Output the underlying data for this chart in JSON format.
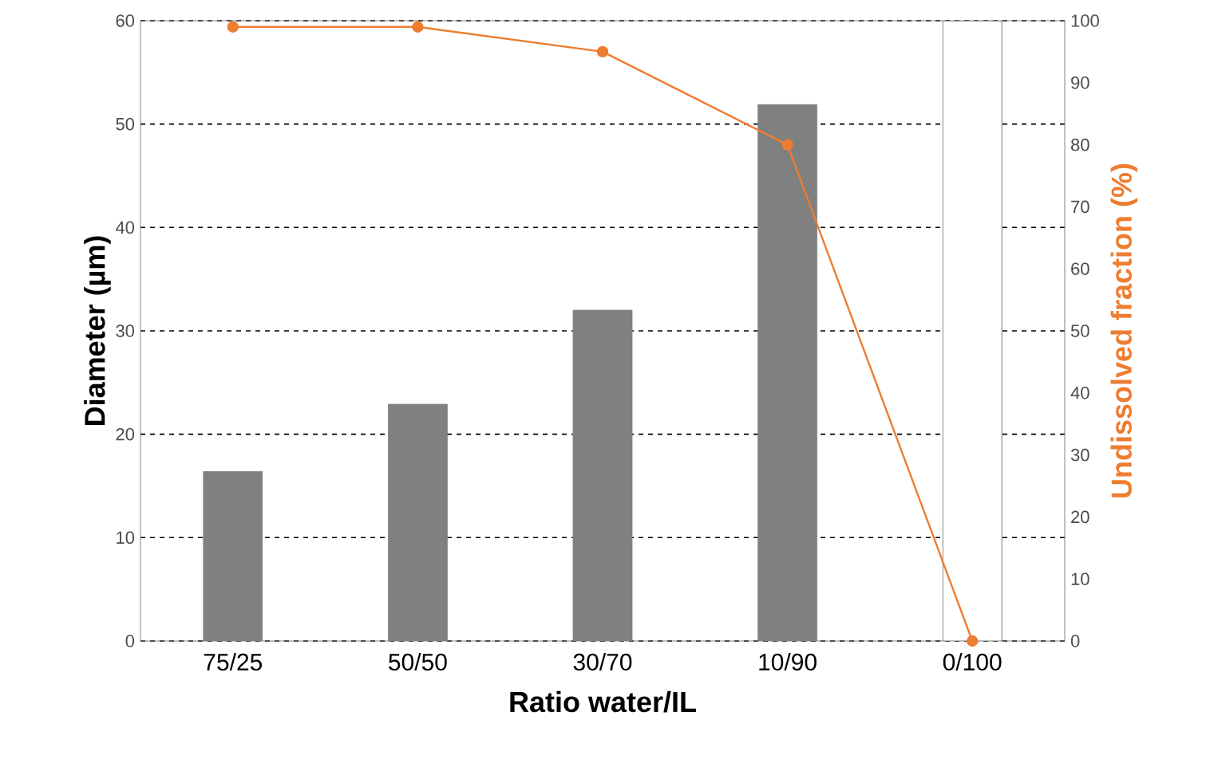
{
  "chart_data": {
    "type": "bar",
    "xlabel": "Ratio water/IL",
    "ylabel": "Diameter (µm)",
    "y2label": "Undissolved fraction (%)",
    "categories": [
      "75/25",
      "50/50",
      "30/70",
      "10/90",
      "0/100"
    ],
    "series": [
      {
        "colors": [
          "#808080",
          "#808080",
          "#808080",
          "#808080",
          "#ffffff"
        ],
        "values": [
          16.4,
          22.9,
          32,
          51.9,
          60
        ]
      },
      {
        "type": "line",
        "axis": "y2",
        "color": "#ed7d31",
        "values": [
          99,
          99,
          95,
          80,
          0
        ]
      }
    ],
    "marker": "circle",
    "ylim": [
      0,
      60
    ],
    "yticks": [
      0,
      10,
      20,
      30,
      40,
      50,
      60
    ],
    "y2lim": [
      0,
      100
    ],
    "y2ticks": [
      0,
      10,
      20,
      30,
      40,
      50,
      60,
      70,
      80,
      90,
      100
    ],
    "grid": "y"
  }
}
